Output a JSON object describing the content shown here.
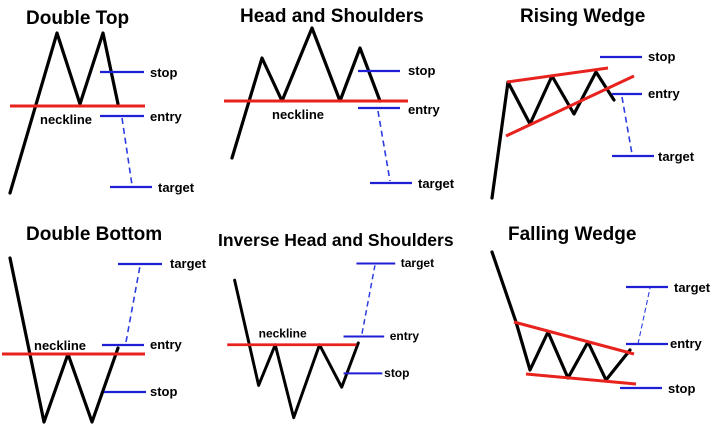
{
  "patterns": [
    {
      "title": "Double Top",
      "neckline": "neckline",
      "stop": "stop",
      "entry": "entry",
      "target": "target"
    },
    {
      "title": "Head and Shoulders",
      "neckline": "neckline",
      "stop": "stop",
      "entry": "entry",
      "target": "target"
    },
    {
      "title": "Rising Wedge",
      "stop": "stop",
      "entry": "entry",
      "target": "target"
    },
    {
      "title": "Double Bottom",
      "neckline": "neckline",
      "stop": "stop",
      "entry": "entry",
      "target": "target"
    },
    {
      "title": "Inverse Head and Shoulders",
      "neckline": "neckline",
      "stop": "stop",
      "entry": "entry",
      "target": "target"
    },
    {
      "title": "Falling Wedge",
      "stop": "stop",
      "entry": "entry",
      "target": "target"
    }
  ],
  "colors": {
    "price_line": "#000000",
    "neckline": "#e8231e",
    "levels": "#1f1fd6",
    "projection": "#2a3de0"
  }
}
